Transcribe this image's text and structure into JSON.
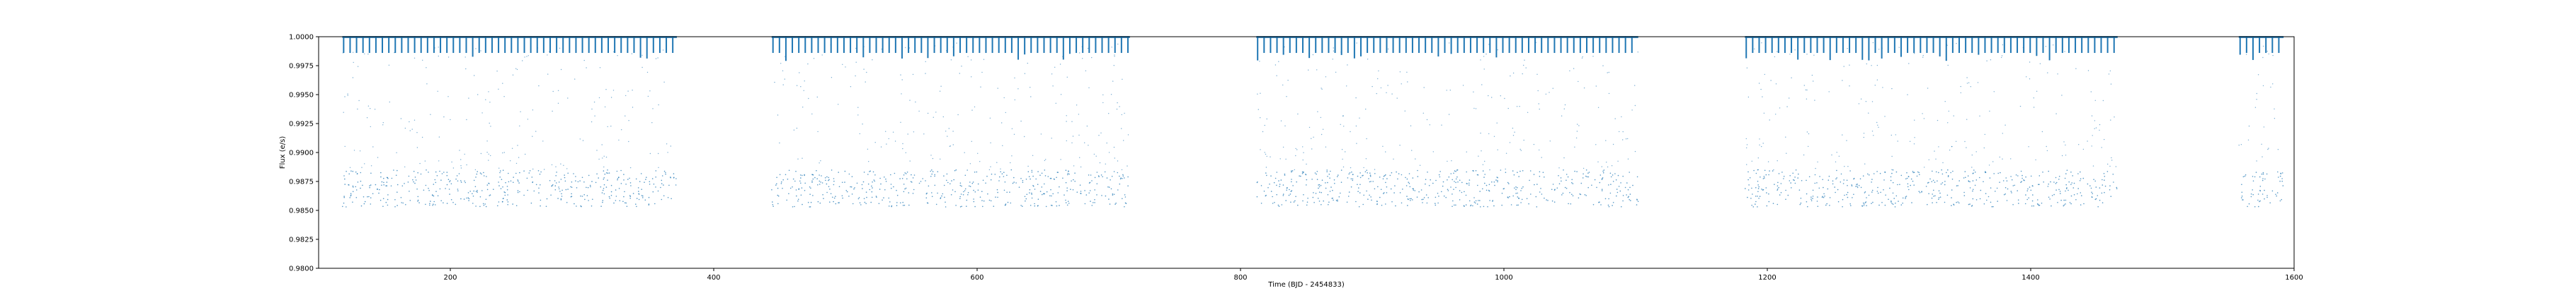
{
  "chart_data": {
    "type": "scatter",
    "title": "",
    "xlabel": "Time (BJD - 2454833)",
    "ylabel": "Flux (e/s)",
    "xlim": [
      100,
      1600
    ],
    "ylim": [
      0.98,
      1.0
    ],
    "xticks": [
      200,
      400,
      600,
      800,
      1000,
      1200,
      1400,
      1600
    ],
    "xtick_labels": [
      "200",
      "400",
      "600",
      "800",
      "1000",
      "1200",
      "1400",
      "1600"
    ],
    "yticks": [
      0.98,
      0.9825,
      0.985,
      0.9875,
      0.99,
      0.9925,
      0.995,
      0.9975,
      1.0
    ],
    "ytick_labels": [
      "0.9800",
      "0.9825",
      "0.9850",
      "0.9875",
      "0.9900",
      "0.9925",
      "0.9950",
      "0.9975",
      "1.0000"
    ],
    "grid": false,
    "marker_color": "#1f77b4",
    "observing_segments": [
      [
        118,
        372
      ],
      [
        444,
        716
      ],
      [
        812,
        1102
      ],
      [
        1183,
        1466
      ],
      [
        1558,
        1592
      ]
    ],
    "baseline_flux": 1.0,
    "transit_depth_flux": 0.9986,
    "transit_period_days": 4.9,
    "scatter_flux_range": [
      0.9853,
      0.9885
    ],
    "scatter_flux_sparse_range": [
      0.9885,
      0.9995
    ]
  }
}
